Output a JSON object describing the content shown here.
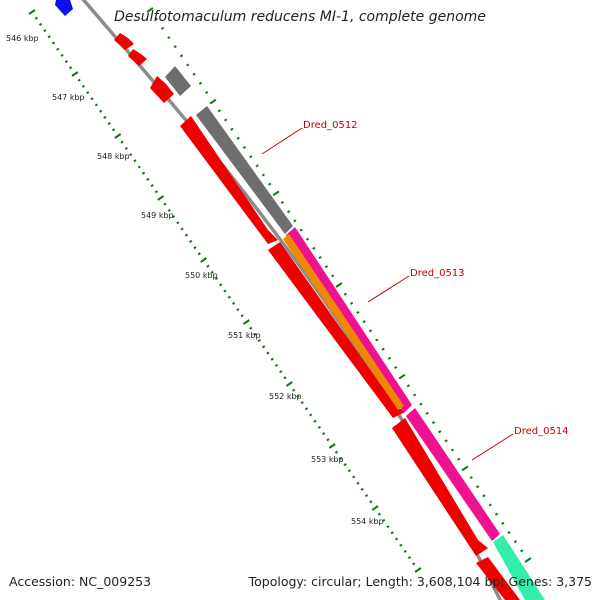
{
  "title": "Desulfotomaculum reducens MI-1, complete genome",
  "accession": "Accession: NC_009253",
  "summary": "Topology: circular; Length: 3,608,104 bp; Genes: 3,375",
  "tick_labels": [
    "546 kbp",
    "547 kbp",
    "548 kbp",
    "549 kbp",
    "550 kbp",
    "551 kbp",
    "552 kbp",
    "553 kbp",
    "554 kbp"
  ],
  "gene_labels": [
    "Dred_0512",
    "Dred_0513",
    "Dred_0514"
  ],
  "colors": {
    "backbone": "#8c8c8c",
    "cds_red": "#ee0000",
    "cds_gray": "#6e6e6e",
    "cds_pink": "#ee1190",
    "cds_orange": "#ee8800",
    "cds_green": "#33eeaa",
    "cds_blue": "#1010ee",
    "tick": "#117711",
    "label_line": "#cc0000"
  }
}
